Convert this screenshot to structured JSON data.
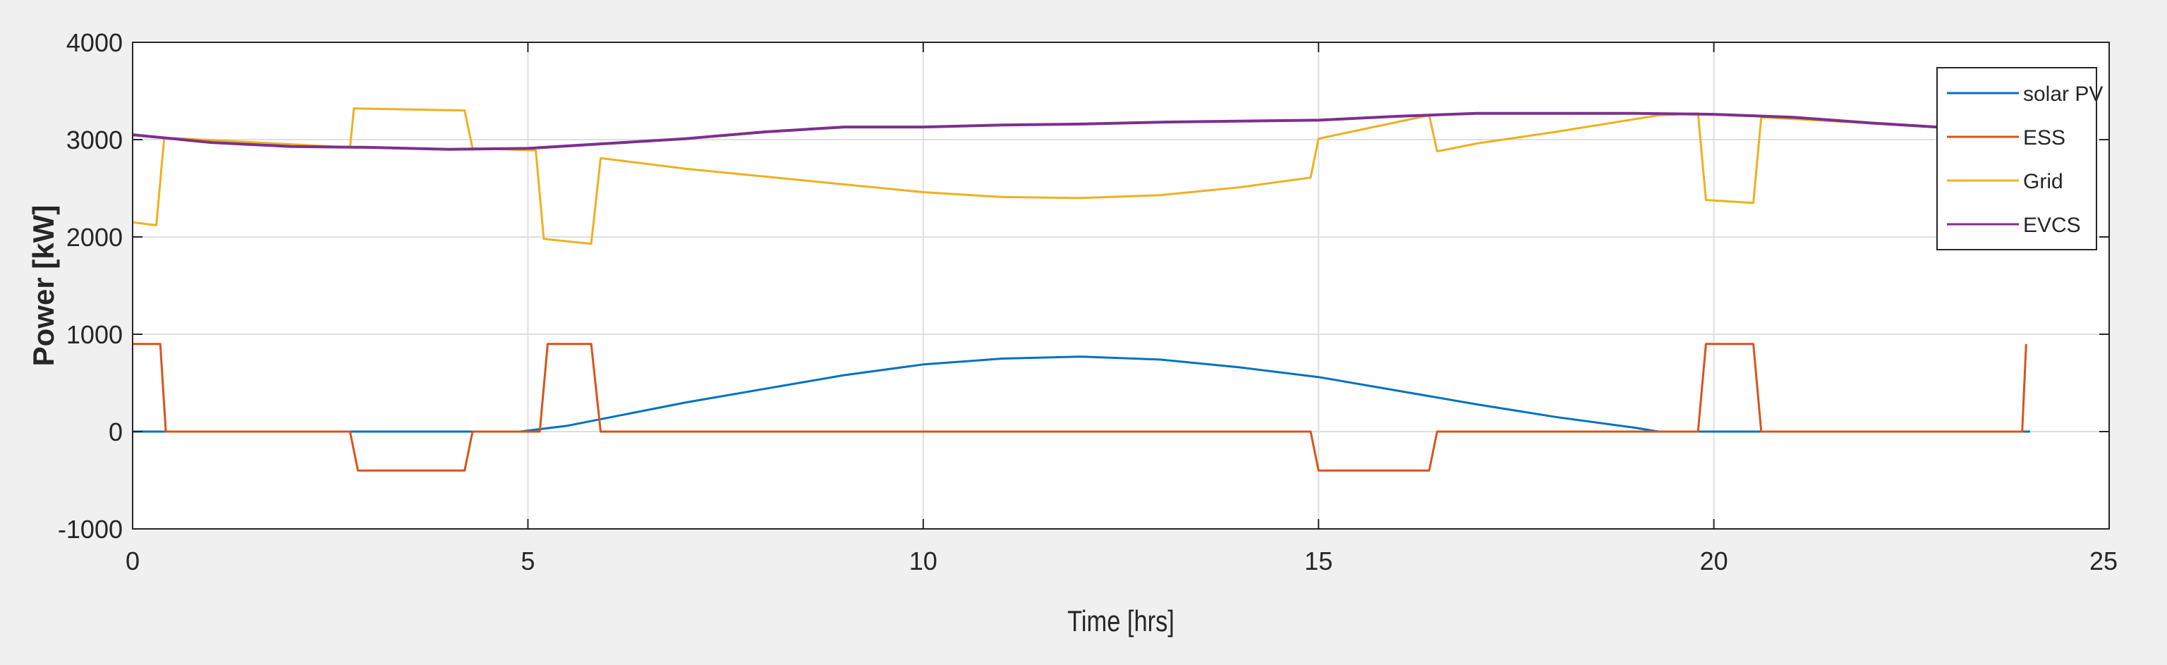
{
  "chart_data": {
    "type": "line",
    "xlabel": "Time [hrs]",
    "ylabel": "Power [kW]",
    "xlim": [
      0,
      25
    ],
    "ylim": [
      -1000,
      4000
    ],
    "xticks": [
      0,
      5,
      10,
      15,
      20,
      25
    ],
    "yticks": [
      -1000,
      0,
      1000,
      2000,
      3000,
      4000
    ],
    "grid": true,
    "legend_position": "top-right",
    "series": [
      {
        "name": "solar PV",
        "color": "#0072bd",
        "points": [
          [
            0,
            0
          ],
          [
            4.9,
            0
          ],
          [
            5.5,
            60
          ],
          [
            6,
            140
          ],
          [
            7,
            300
          ],
          [
            8,
            440
          ],
          [
            9,
            580
          ],
          [
            10,
            690
          ],
          [
            11,
            750
          ],
          [
            12,
            770
          ],
          [
            13,
            740
          ],
          [
            14,
            660
          ],
          [
            15,
            560
          ],
          [
            16,
            420
          ],
          [
            17,
            280
          ],
          [
            18,
            150
          ],
          [
            19,
            40
          ],
          [
            19.3,
            0
          ],
          [
            24,
            0
          ]
        ]
      },
      {
        "name": "ESS",
        "color": "#d95319",
        "points": [
          [
            0,
            900
          ],
          [
            0.35,
            900
          ],
          [
            0.42,
            0
          ],
          [
            2.75,
            0
          ],
          [
            2.85,
            -400
          ],
          [
            4.2,
            -400
          ],
          [
            4.3,
            0
          ],
          [
            5.15,
            0
          ],
          [
            5.25,
            900
          ],
          [
            5.8,
            900
          ],
          [
            5.92,
            0
          ],
          [
            14.9,
            0
          ],
          [
            15.0,
            -400
          ],
          [
            16.4,
            -400
          ],
          [
            16.5,
            0
          ],
          [
            19.8,
            0
          ],
          [
            19.9,
            900
          ],
          [
            20.5,
            900
          ],
          [
            20.6,
            0
          ],
          [
            23.9,
            0
          ],
          [
            23.95,
            900
          ]
        ]
      },
      {
        "name": "Grid",
        "color": "#edb120",
        "points": [
          [
            0,
            2150
          ],
          [
            0.3,
            2120
          ],
          [
            0.4,
            3020
          ],
          [
            2.75,
            2920
          ],
          [
            2.8,
            3320
          ],
          [
            4.2,
            3300
          ],
          [
            4.3,
            2910
          ],
          [
            5.1,
            2890
          ],
          [
            5.2,
            1980
          ],
          [
            5.8,
            1930
          ],
          [
            5.92,
            2810
          ],
          [
            7,
            2700
          ],
          [
            8,
            2620
          ],
          [
            9,
            2540
          ],
          [
            10,
            2460
          ],
          [
            11,
            2410
          ],
          [
            12,
            2400
          ],
          [
            13,
            2430
          ],
          [
            14,
            2510
          ],
          [
            14.9,
            2610
          ],
          [
            15.0,
            3010
          ],
          [
            16.4,
            3250
          ],
          [
            16.5,
            2880
          ],
          [
            17,
            2960
          ],
          [
            18,
            3080
          ],
          [
            19.3,
            3250
          ],
          [
            19.8,
            3270
          ],
          [
            19.9,
            2380
          ],
          [
            20.5,
            2350
          ],
          [
            20.6,
            3230
          ],
          [
            24,
            3080
          ]
        ]
      },
      {
        "name": "EVCS",
        "color": "#7e2f8e",
        "points": [
          [
            0,
            3050
          ],
          [
            1,
            2970
          ],
          [
            2,
            2930
          ],
          [
            3,
            2920
          ],
          [
            4,
            2900
          ],
          [
            5,
            2910
          ],
          [
            6,
            2960
          ],
          [
            7,
            3010
          ],
          [
            8,
            3080
          ],
          [
            9,
            3130
          ],
          [
            10,
            3130
          ],
          [
            11,
            3150
          ],
          [
            12,
            3160
          ],
          [
            13,
            3180
          ],
          [
            14,
            3190
          ],
          [
            15,
            3200
          ],
          [
            16,
            3240
          ],
          [
            17,
            3270
          ],
          [
            18,
            3270
          ],
          [
            19,
            3270
          ],
          [
            20,
            3260
          ],
          [
            21,
            3230
          ],
          [
            22,
            3170
          ],
          [
            23,
            3120
          ],
          [
            24,
            3080
          ]
        ]
      }
    ]
  }
}
